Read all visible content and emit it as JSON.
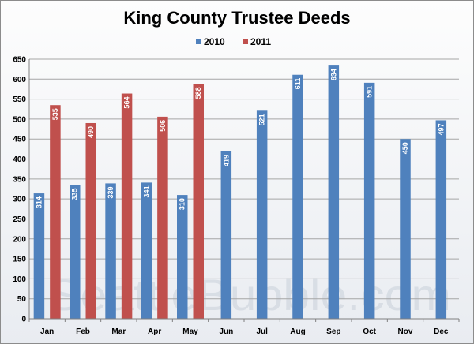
{
  "watermark": "SeattleBubble.com",
  "colors": {
    "s2010": "#4f81bd",
    "s2011": "#c0504d",
    "grid": "#a6a6a6"
  },
  "chart_data": {
    "type": "bar",
    "title": "King County Trustee Deeds",
    "xlabel": "",
    "ylabel": "",
    "categories": [
      "Jan",
      "Feb",
      "Mar",
      "Apr",
      "May",
      "Jun",
      "Jul",
      "Aug",
      "Sep",
      "Oct",
      "Nov",
      "Dec"
    ],
    "series": [
      {
        "name": "2010",
        "values": [
          314,
          335,
          339,
          341,
          310,
          419,
          521,
          611,
          634,
          591,
          450,
          497
        ]
      },
      {
        "name": "2011",
        "values": [
          535,
          490,
          564,
          506,
          588,
          null,
          null,
          null,
          null,
          null,
          null,
          null
        ]
      }
    ],
    "ylim": [
      0,
      650
    ],
    "yticks": [
      0,
      50,
      100,
      150,
      200,
      250,
      300,
      350,
      400,
      450,
      500,
      550,
      600,
      650
    ],
    "grid": true,
    "legend": "top-center",
    "data_labels": true
  }
}
